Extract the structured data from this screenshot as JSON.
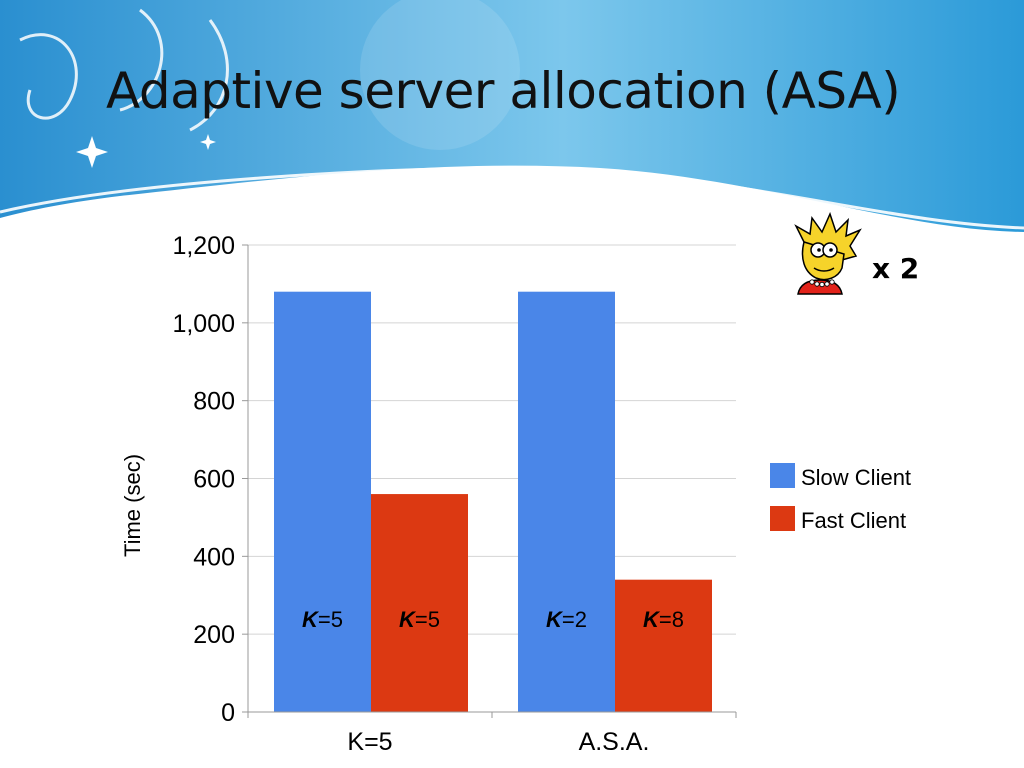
{
  "slide": {
    "title": "Adaptive server allocation (ASA)",
    "multiplier": "x 2",
    "character_icon": "lisa-simpson-icon"
  },
  "colors": {
    "header_blue": "#2f9bd6",
    "slow_client": "#4a86e8",
    "fast_client": "#dc3912"
  },
  "chart_data": {
    "type": "bar",
    "categories": [
      "K=5",
      "A.S.A."
    ],
    "series": [
      {
        "name": "Slow Client",
        "color": "#4a86e8",
        "values": [
          1080,
          1080
        ]
      },
      {
        "name": "Fast Client",
        "color": "#dc3912",
        "values": [
          560,
          340
        ]
      }
    ],
    "bar_labels": [
      [
        "5",
        "5"
      ],
      [
        "2",
        "8"
      ]
    ],
    "bar_label_prefix": "K",
    "ylabel": "Time (sec)",
    "ylim": [
      0,
      1200
    ],
    "yticks": [
      0,
      200,
      400,
      600,
      800,
      1000,
      1200
    ],
    "ytick_labels": [
      "0",
      "200",
      "400",
      "600",
      "800",
      "1,000",
      "1,200"
    ],
    "grid": true,
    "legend_position": "right"
  }
}
